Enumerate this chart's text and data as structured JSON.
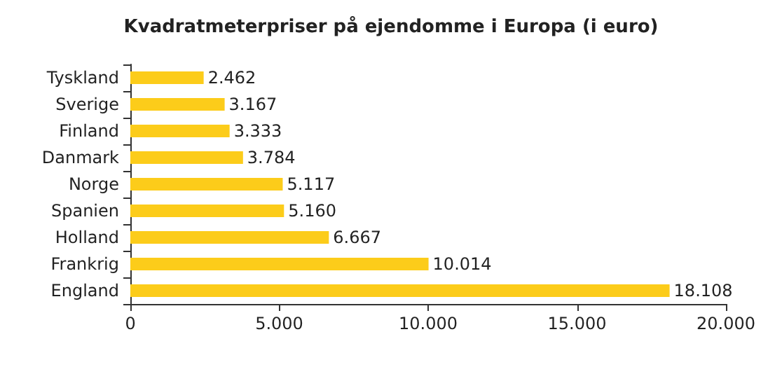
{
  "chart_data": {
    "type": "bar",
    "orientation": "horizontal",
    "title": "Kvadratmeterpriser på ejendomme i Europa (i euro)",
    "categories": [
      "Tyskland",
      "Sverige",
      "Finland",
      "Danmark",
      "Norge",
      "Spanien",
      "Holland",
      "Frankrig",
      "England"
    ],
    "values": [
      2462,
      3167,
      3333,
      3784,
      5117,
      5160,
      6667,
      10014,
      18108
    ],
    "value_labels": [
      "2.462",
      "3.167",
      "3.333",
      "3.784",
      "5.117",
      "5.160",
      "6.667",
      "10.014",
      "18.108"
    ],
    "color": "#fccc1a",
    "xlim": [
      0,
      20000
    ],
    "xticks": [
      0,
      {
        "value": 5000,
        "label": "5.000"
      },
      {
        "value": 10000,
        "label": "10.000"
      },
      {
        "value": 15000,
        "label": "15.000"
      },
      {
        "value": 20000,
        "label": "20.000"
      }
    ],
    "grid": false
  }
}
